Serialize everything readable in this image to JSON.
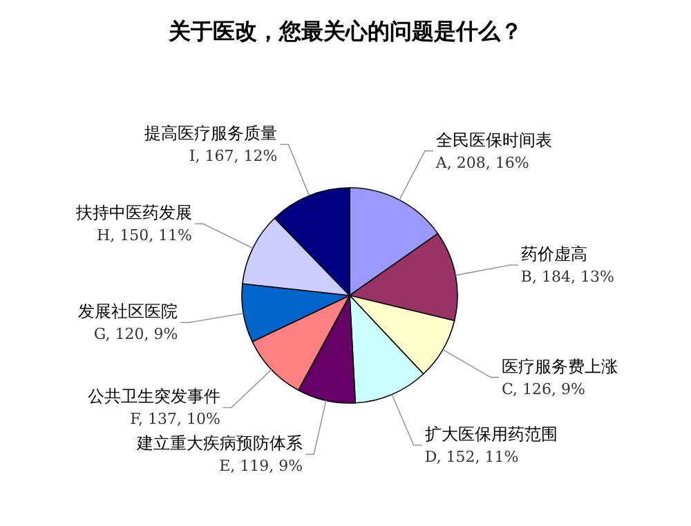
{
  "chart_data": {
    "type": "pie",
    "title": "关于医改，您最关心的问题是什么？",
    "categories": [
      "全民医保时间表",
      "药价虚高",
      "医疗服务费上涨",
      "扩大医保用药范围",
      "建立重大疾病预防体系",
      "公共卫生突发事件",
      "发展社区医院",
      "扶持中医药发展",
      "提高医疗服务质量"
    ],
    "values": [
      208,
      184,
      126,
      152,
      119,
      137,
      120,
      150,
      167
    ],
    "value_labels": [
      "A, 208, 16%",
      "B, 184, 13%",
      "C, 126, 9%",
      "D, 152, 11%",
      "E, 119, 9%",
      "F, 137, 10%",
      "G, 120, 9%",
      "H, 150, 11%",
      "I, 167, 12%"
    ],
    "colors": [
      "#9999ff",
      "#993366",
      "#ffffcc",
      "#ccffff",
      "#660066",
      "#ff8080",
      "#0066cc",
      "#ccccff",
      "#000080"
    ]
  }
}
